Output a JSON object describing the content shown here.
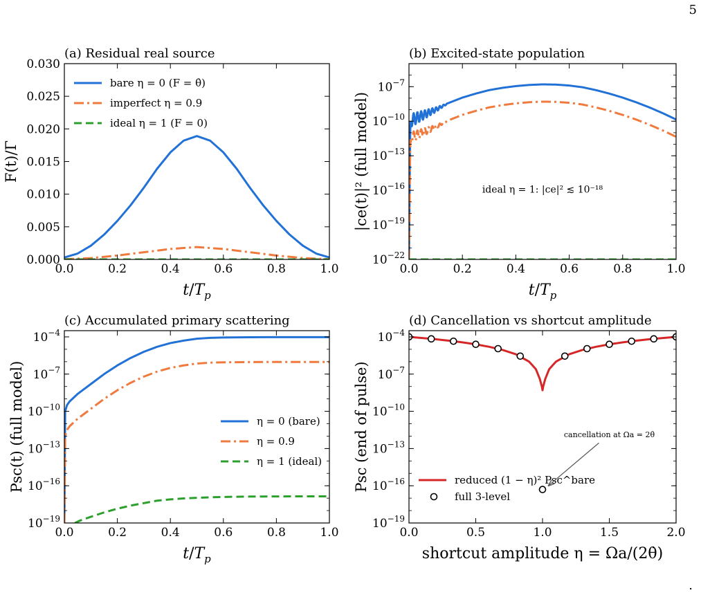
{
  "page": {
    "number": "5",
    "trailing_mark": "."
  },
  "chart_data": [
    {
      "id": "a",
      "type": "line",
      "title": "(a)  Residual real source",
      "xlabel": "t/Tp",
      "ylabel": "F(t)/Γ",
      "xscale": "linear",
      "yscale": "linear",
      "xlim": [
        0,
        1
      ],
      "ylim": [
        0,
        0.03
      ],
      "xticks": [
        0,
        0.2,
        0.4,
        0.6,
        0.8,
        1.0
      ],
      "xtick_labels": [
        "0.0",
        "0.2",
        "0.4",
        "0.6",
        "0.8",
        "1.0"
      ],
      "yticks": [
        0,
        0.005,
        0.01,
        0.015,
        0.02,
        0.025,
        0.03
      ],
      "ytick_labels": [
        "0.000",
        "0.005",
        "0.010",
        "0.015",
        "0.020",
        "0.025",
        "0.030"
      ],
      "legend_position": "top-left",
      "series": [
        {
          "name": "bare  η = 0  (F = θ̇)",
          "color": "#2271d6",
          "style": "solid",
          "x": [
            0,
            0.05,
            0.1,
            0.15,
            0.2,
            0.25,
            0.3,
            0.35,
            0.4,
            0.45,
            0.5,
            0.55,
            0.6,
            0.65,
            0.7,
            0.75,
            0.8,
            0.85,
            0.9,
            0.95,
            1.0
          ],
          "y": [
            0.0003,
            0.0009,
            0.0021,
            0.0038,
            0.0059,
            0.0083,
            0.011,
            0.0139,
            0.0164,
            0.0182,
            0.0189,
            0.0182,
            0.0164,
            0.0139,
            0.011,
            0.0083,
            0.0059,
            0.0038,
            0.0021,
            0.0009,
            0.0003
          ]
        },
        {
          "name": "imperfect  η = 0.9",
          "color": "#f07a3d",
          "style": "dashdot",
          "x": [
            0,
            0.1,
            0.2,
            0.3,
            0.4,
            0.5,
            0.6,
            0.7,
            0.8,
            0.9,
            1.0
          ],
          "y": [
            3e-05,
            0.0002,
            0.0006,
            0.0011,
            0.0016,
            0.0019,
            0.0016,
            0.0011,
            0.0006,
            0.0002,
            3e-05
          ]
        },
        {
          "name": "ideal  η = 1  (F = 0)",
          "color": "#2ca02c",
          "style": "dashed",
          "x": [
            0,
            1
          ],
          "y": [
            0,
            0
          ]
        }
      ]
    },
    {
      "id": "b",
      "type": "line",
      "title": "(b)  Excited-state population",
      "xlabel": "t/Tp",
      "ylabel": "|ce(t)|²  (full model)",
      "xscale": "linear",
      "yscale": "log",
      "xlim": [
        0,
        1
      ],
      "ylim_log10": [
        -22,
        -5
      ],
      "xticks": [
        0,
        0.2,
        0.4,
        0.6,
        0.8,
        1.0
      ],
      "xtick_labels": [
        "0.0",
        "0.2",
        "0.4",
        "0.6",
        "0.8",
        "1.0"
      ],
      "ytick_exponents": [
        -22,
        -19,
        -16,
        -13,
        -10,
        -7
      ],
      "annotation": {
        "text": "ideal η = 1:  |ce|² ≲ 10⁻¹⁸",
        "color": "#2ca02c",
        "x": 0.5,
        "log10_y": -16.2
      },
      "series": [
        {
          "name": "bare",
          "color": "#2271d6",
          "style": "solid",
          "x": [
            0,
            0.005,
            0.01,
            0.02,
            0.03,
            0.05,
            0.07,
            0.1,
            0.15,
            0.2,
            0.25,
            0.3,
            0.35,
            0.4,
            0.45,
            0.5,
            0.55,
            0.6,
            0.65,
            0.7,
            0.75,
            0.8,
            0.85,
            0.9,
            0.95,
            1.0
          ],
          "log10_y": [
            -22,
            -10.5,
            -9.9,
            -9.8,
            -9.7,
            -9.5,
            -9.3,
            -9.0,
            -8.4,
            -7.95,
            -7.6,
            -7.3,
            -7.1,
            -6.95,
            -6.85,
            -6.8,
            -6.82,
            -6.9,
            -7.05,
            -7.3,
            -7.6,
            -7.95,
            -8.35,
            -8.8,
            -9.3,
            -9.85
          ],
          "oscillation": {
            "x_end": 0.15,
            "amplitude_log10": 0.6,
            "period": 0.014
          }
        },
        {
          "name": "imperfect",
          "color": "#f07a3d",
          "style": "dashdot",
          "x": [
            0,
            0.005,
            0.01,
            0.02,
            0.03,
            0.05,
            0.07,
            0.1,
            0.15,
            0.2,
            0.25,
            0.3,
            0.35,
            0.4,
            0.45,
            0.5,
            0.55,
            0.6,
            0.65,
            0.7,
            0.75,
            0.8,
            0.85,
            0.9,
            0.95,
            1.0
          ],
          "log10_y": [
            -22,
            -12.0,
            -11.4,
            -11.3,
            -11.2,
            -11.0,
            -10.8,
            -10.5,
            -9.9,
            -9.45,
            -9.1,
            -8.8,
            -8.6,
            -8.45,
            -8.35,
            -8.3,
            -8.32,
            -8.4,
            -8.55,
            -8.8,
            -9.1,
            -9.45,
            -9.85,
            -10.3,
            -10.8,
            -11.35
          ],
          "oscillation": {
            "x_end": 0.15,
            "amplitude_log10": 0.5,
            "period": 0.014
          }
        },
        {
          "name": "ideal",
          "color": "#2ca02c",
          "style": "dashed",
          "x": [
            0,
            1
          ],
          "log10_y": [
            -22,
            -22
          ]
        }
      ]
    },
    {
      "id": "c",
      "type": "line",
      "title": "(c)  Accumulated primary scattering",
      "xlabel": "t/Tp",
      "ylabel": "Psc(t)  (full model)",
      "xscale": "linear",
      "yscale": "log",
      "xlim": [
        0,
        1
      ],
      "ylim_log10": [
        -19,
        -3.5
      ],
      "xticks": [
        0,
        0.2,
        0.4,
        0.6,
        0.8,
        1.0
      ],
      "xtick_labels": [
        "0.0",
        "0.2",
        "0.4",
        "0.6",
        "0.8",
        "1.0"
      ],
      "ytick_exponents": [
        -19,
        -16,
        -13,
        -10,
        -7,
        -4
      ],
      "legend_position": "center-right",
      "series": [
        {
          "name": "η = 0 (bare)",
          "color": "#2271d6",
          "style": "solid",
          "x": [
            0,
            0.003,
            0.01,
            0.02,
            0.05,
            0.1,
            0.15,
            0.2,
            0.25,
            0.3,
            0.35,
            0.4,
            0.45,
            0.5,
            0.55,
            0.6,
            0.7,
            0.8,
            0.9,
            1.0
          ],
          "log10_y": [
            -19,
            -10.0,
            -9.5,
            -9.2,
            -8.6,
            -7.8,
            -7.0,
            -6.3,
            -5.7,
            -5.2,
            -4.8,
            -4.5,
            -4.3,
            -4.15,
            -4.08,
            -4.05,
            -4.03,
            -4.02,
            -4.02,
            -4.02
          ]
        },
        {
          "name": "η = 0.9",
          "color": "#f07a3d",
          "style": "dashdot",
          "x": [
            0,
            0.003,
            0.01,
            0.02,
            0.05,
            0.1,
            0.15,
            0.2,
            0.25,
            0.3,
            0.35,
            0.4,
            0.45,
            0.5,
            0.55,
            0.6,
            0.7,
            0.8,
            0.9,
            1.0
          ],
          "log10_y": [
            -19,
            -12.0,
            -11.5,
            -11.2,
            -10.6,
            -9.8,
            -9.0,
            -8.3,
            -7.7,
            -7.2,
            -6.8,
            -6.5,
            -6.3,
            -6.15,
            -6.08,
            -6.05,
            -6.03,
            -6.02,
            -6.02,
            -6.02
          ]
        },
        {
          "name": "η = 1 (ideal)",
          "color": "#2ca02c",
          "style": "dashed",
          "x": [
            0.04,
            0.06,
            0.1,
            0.15,
            0.2,
            0.25,
            0.3,
            0.35,
            0.4,
            0.45,
            0.5,
            0.55,
            0.6,
            0.7,
            0.8,
            0.9,
            1.0
          ],
          "log10_y": [
            -19,
            -18.8,
            -18.5,
            -18.15,
            -17.85,
            -17.6,
            -17.4,
            -17.2,
            -17.1,
            -17.02,
            -16.97,
            -16.93,
            -16.9,
            -16.87,
            -16.86,
            -16.85,
            -16.85
          ]
        }
      ]
    },
    {
      "id": "d",
      "type": "line",
      "title": "(d)  Cancellation vs shortcut amplitude",
      "xlabel": "shortcut amplitude  η = Ωa/(2θ̇)",
      "ylabel": "Psc  (end of pulse)",
      "xscale": "linear",
      "yscale": "log",
      "xlim": [
        0,
        2
      ],
      "ylim_log10": [
        -19,
        -3.5
      ],
      "xticks": [
        0,
        0.5,
        1.0,
        1.5,
        2.0
      ],
      "xtick_labels": [
        "0.0",
        "0.5",
        "1.0",
        "1.5",
        "2.0"
      ],
      "ytick_exponents": [
        -19,
        -16,
        -13,
        -10,
        -7,
        -4
      ],
      "legend_position": "bottom-left",
      "annotation": {
        "text": "cancellation at Ωa = 2θ̇",
        "x": 1.5,
        "log10_y": -12.1,
        "arrow_to": [
          1.0,
          -16.3
        ]
      },
      "series": [
        {
          "name": "reduced  (1 − η)² Psc^bare",
          "color": "#d62728",
          "style": "solid",
          "x": [
            0,
            0.1,
            0.2,
            0.3,
            0.4,
            0.5,
            0.6,
            0.7,
            0.8,
            0.9,
            0.95,
            0.98,
            0.995,
            1.0,
            1.005,
            1.02,
            1.05,
            1.1,
            1.2,
            1.3,
            1.4,
            1.5,
            1.6,
            1.7,
            1.8,
            1.9,
            2.0
          ],
          "log10_y": [
            -4.0,
            -4.09,
            -4.19,
            -4.31,
            -4.44,
            -4.6,
            -4.8,
            -5.05,
            -5.4,
            -6.0,
            -6.6,
            -7.4,
            -8.0,
            -8.3,
            -8.0,
            -7.4,
            -6.6,
            -6.0,
            -5.4,
            -5.05,
            -4.8,
            -4.6,
            -4.44,
            -4.31,
            -4.19,
            -4.09,
            -4.0
          ]
        },
        {
          "name": "full 3-level",
          "color": "#000000",
          "style": "markers",
          "x": [
            0,
            0.167,
            0.333,
            0.5,
            0.667,
            0.833,
            1.0,
            1.167,
            1.333,
            1.5,
            1.667,
            1.833,
            2.0
          ],
          "log10_y": [
            -4.0,
            -4.16,
            -4.35,
            -4.6,
            -4.95,
            -5.55,
            -16.3,
            -5.55,
            -4.95,
            -4.6,
            -4.35,
            -4.16,
            -4.0
          ]
        }
      ]
    }
  ]
}
